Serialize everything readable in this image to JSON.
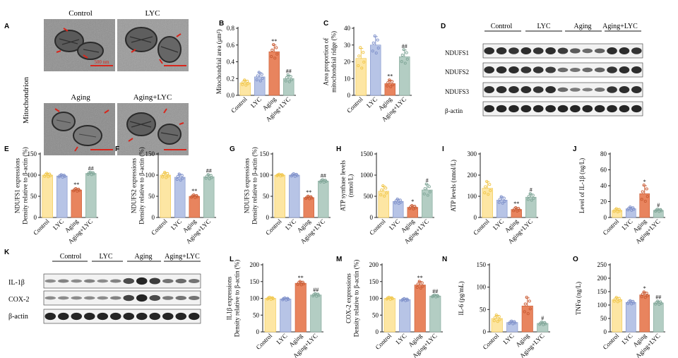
{
  "colors": {
    "control": "#fde6a3",
    "lyc": "#b7c4e6",
    "aging": "#e8845e",
    "aging_lyc": "#b3cdc3",
    "control_pt": "#f0c64a",
    "lyc_pt": "#7d8fc9",
    "aging_pt": "#c95a32",
    "aging_lyc_pt": "#7fa597",
    "axis": "#222222",
    "scale_bar": "#d8261c"
  },
  "panel_A": {
    "letter": "A",
    "ylabel": "Mitochondrion",
    "titles": [
      "Control",
      "LYC",
      "Aging",
      "Aging+LYC"
    ],
    "scale": "500 nm"
  },
  "panel_D": {
    "letter": "D",
    "groups": [
      "Control",
      "LYC",
      "Aging",
      "Aging+LYC"
    ],
    "rows": [
      "NDUFS1",
      "NDUFS2",
      "NDUFS3",
      "β-actin"
    ]
  },
  "panel_K": {
    "letter": "K",
    "groups": [
      "Control",
      "LYC",
      "Aging",
      "Aging+LYC"
    ],
    "rows": [
      "IL-1β",
      "COX-2",
      "β-actin"
    ]
  },
  "chart_data": [
    {
      "id": "B",
      "type": "bar",
      "title": "",
      "ylabel": "Mitochondrial area (μm²)",
      "categories": [
        "Control",
        "LYC",
        "Aging",
        "Aging+LYC"
      ],
      "values": [
        0.15,
        0.22,
        0.52,
        0.2
      ],
      "errors": [
        0.03,
        0.05,
        0.08,
        0.04
      ],
      "ylim": [
        0,
        0.8
      ],
      "yticks": [
        0.0,
        0.2,
        0.4,
        0.6,
        0.8
      ],
      "ytick_labels": [
        "0.0",
        "0.2",
        "0.4",
        "0.6",
        "0.8"
      ],
      "annotations": [
        "",
        "",
        "**",
        "##"
      ]
    },
    {
      "id": "C",
      "type": "bar",
      "title": "",
      "ylabel": "Area proportion of mitochondrial ridge (%)",
      "categories": [
        "Control",
        "LYC",
        "Aging",
        "Aging+LYC"
      ],
      "values": [
        22,
        30,
        7,
        23
      ],
      "errors": [
        6,
        5,
        2,
        4
      ],
      "ylim": [
        0,
        40
      ],
      "yticks": [
        0,
        10,
        20,
        30,
        40
      ],
      "ytick_labels": [
        "0",
        "10",
        "20",
        "30",
        "40"
      ],
      "annotations": [
        "",
        "",
        "**",
        "##"
      ]
    },
    {
      "id": "E",
      "type": "bar",
      "title": "",
      "ylabel": "NDUFS1 expressions Density relative to β-actin (%)",
      "categories": [
        "Control",
        "LYC",
        "Aging",
        "Aging+LYC"
      ],
      "values": [
        100,
        98,
        65,
        104
      ],
      "errors": [
        4,
        3,
        3,
        3
      ],
      "ylim": [
        0,
        150
      ],
      "yticks": [
        0,
        50,
        100,
        150
      ],
      "ytick_labels": [
        "0",
        "50",
        "100",
        "150"
      ],
      "annotations": [
        "",
        "",
        "**",
        "##"
      ]
    },
    {
      "id": "F",
      "type": "bar",
      "title": "",
      "ylabel": "NDUFS2 expressions Density relative to β-actin (%)",
      "categories": [
        "Control",
        "LYC",
        "Aging",
        "Aging+LYC"
      ],
      "values": [
        100,
        95,
        50,
        96
      ],
      "errors": [
        6,
        7,
        3,
        5
      ],
      "ylim": [
        0,
        150
      ],
      "yticks": [
        0,
        50,
        100,
        150
      ],
      "ytick_labels": [
        "0",
        "50",
        "100",
        "150"
      ],
      "annotations": [
        "",
        "",
        "**",
        "##"
      ]
    },
    {
      "id": "G",
      "type": "bar",
      "title": "",
      "ylabel": "NDUFS3 expressions Density relative to β-actin (%)",
      "categories": [
        "Control",
        "LYC",
        "Aging",
        "Aging+LYC"
      ],
      "values": [
        100,
        100,
        47,
        86
      ],
      "errors": [
        2,
        3,
        3,
        3
      ],
      "ylim": [
        0,
        150
      ],
      "yticks": [
        0,
        50,
        100,
        150
      ],
      "ytick_labels": [
        "0",
        "50",
        "100",
        "150"
      ],
      "annotations": [
        "",
        "",
        "**",
        "##"
      ]
    },
    {
      "id": "H",
      "type": "bar",
      "title": "",
      "ylabel": "ATP synthase levels (nmol/L)",
      "categories": [
        "Control",
        "LYC",
        "Aging",
        "Aging+LYC"
      ],
      "values": [
        620,
        380,
        240,
        650
      ],
      "errors": [
        120,
        50,
        40,
        130
      ],
      "ylim": [
        0,
        1500
      ],
      "yticks": [
        0,
        500,
        1000,
        1500
      ],
      "ytick_labels": [
        "0",
        "500",
        "1000",
        "1500"
      ],
      "annotations": [
        "",
        "",
        "*",
        "#"
      ]
    },
    {
      "id": "I",
      "type": "bar",
      "title": "",
      "ylabel": "ATP levels (nmol/L)",
      "categories": [
        "Control",
        "LYC",
        "Aging",
        "Aging+LYC"
      ],
      "values": [
        138,
        82,
        38,
        96
      ],
      "errors": [
        30,
        15,
        8,
        15
      ],
      "ylim": [
        0,
        300
      ],
      "yticks": [
        0,
        100,
        200,
        300
      ],
      "ytick_labels": [
        "0",
        "100",
        "200",
        "300"
      ],
      "annotations": [
        "",
        "",
        "**",
        "#"
      ]
    },
    {
      "id": "J",
      "type": "bar",
      "title": "",
      "ylabel": "Level of IL-1β (ng/L)",
      "categories": [
        "Control",
        "LYC",
        "Aging",
        "Aging+LYC"
      ],
      "values": [
        9,
        11,
        30,
        9
      ],
      "errors": [
        2,
        2,
        10,
        1.5
      ],
      "ylim": [
        0,
        80
      ],
      "yticks": [
        0,
        20,
        40,
        60,
        80
      ],
      "ytick_labels": [
        "0",
        "20",
        "40",
        "60",
        "80"
      ],
      "annotations": [
        "",
        "",
        "*",
        "#"
      ]
    },
    {
      "id": "L",
      "type": "bar",
      "title": "",
      "ylabel": "IL1β expressions Density relative to β-actin (%)",
      "categories": [
        "Control",
        "LYC",
        "Aging",
        "Aging+LYC"
      ],
      "values": [
        100,
        98,
        145,
        110
      ],
      "errors": [
        3,
        3,
        5,
        4
      ],
      "ylim": [
        0,
        200
      ],
      "yticks": [
        0,
        50,
        100,
        150,
        200
      ],
      "ytick_labels": [
        "0",
        "50",
        "100",
        "150",
        "200"
      ],
      "annotations": [
        "",
        "",
        "**",
        "##"
      ]
    },
    {
      "id": "M",
      "type": "bar",
      "title": "",
      "ylabel": "COX-2 expressions Density relative to β-actin (%)",
      "categories": [
        "Control",
        "LYC",
        "Aging",
        "Aging+LYC"
      ],
      "values": [
        100,
        96,
        140,
        107
      ],
      "errors": [
        3,
        3,
        10,
        3
      ],
      "ylim": [
        0,
        200
      ],
      "yticks": [
        0,
        50,
        100,
        150,
        200
      ],
      "ytick_labels": [
        "0",
        "50",
        "100",
        "150",
        "200"
      ],
      "annotations": [
        "",
        "",
        "**",
        "##"
      ]
    },
    {
      "id": "N",
      "type": "bar",
      "title": "",
      "ylabel": "IL-6 (pg/mL)",
      "categories": [
        "Control",
        "LYC",
        "Aging",
        "Aging+LYC"
      ],
      "values": [
        30,
        21,
        58,
        19
      ],
      "errors": [
        7,
        3,
        18,
        3
      ],
      "ylim": [
        0,
        150
      ],
      "yticks": [
        0,
        50,
        100,
        150
      ],
      "ytick_labels": [
        "0",
        "50",
        "100",
        "150"
      ],
      "annotations": [
        "",
        "",
        "",
        "#"
      ]
    },
    {
      "id": "O",
      "type": "bar",
      "title": "",
      "ylabel": "TNFα (ng/L)",
      "categories": [
        "Control",
        "LYC",
        "Aging",
        "Aging+LYC"
      ],
      "values": [
        120,
        110,
        138,
        108
      ],
      "errors": [
        8,
        6,
        10,
        6
      ],
      "ylim": [
        0,
        250
      ],
      "yticks": [
        0,
        50,
        100,
        150,
        200,
        250
      ],
      "ytick_labels": [
        "0",
        "50",
        "100",
        "150",
        "200",
        "250"
      ],
      "annotations": [
        "",
        "",
        "*",
        "##"
      ]
    }
  ]
}
